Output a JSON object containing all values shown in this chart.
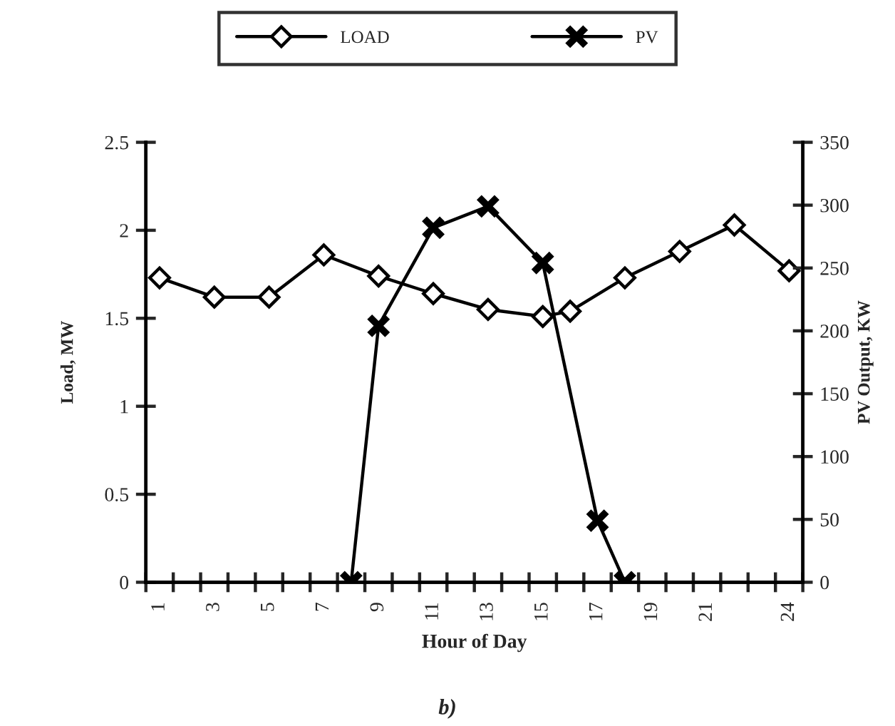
{
  "chart_data": {
    "type": "line",
    "categories": [
      "1",
      null,
      "3",
      null,
      "5",
      null,
      "7",
      null,
      "9",
      null,
      "11",
      null,
      "13",
      null,
      "15",
      null,
      "17",
      null,
      "19",
      null,
      "21",
      null,
      null,
      "24"
    ],
    "series": [
      {
        "name": "LOAD",
        "color": "#000000",
        "marker": "diamond",
        "values": [
          1.73,
          null,
          1.62,
          null,
          1.62,
          null,
          1.86,
          null,
          1.74,
          null,
          1.64,
          null,
          1.55,
          null,
          1.51,
          1.54,
          null,
          1.73,
          null,
          1.88,
          null,
          2.03,
          null,
          1.77
        ]
      },
      {
        "name": "PV",
        "color": "#000000",
        "marker": "cross",
        "axis": "y2",
        "values": [
          null,
          null,
          null,
          null,
          null,
          null,
          null,
          0,
          204,
          null,
          282,
          null,
          299,
          null,
          254,
          null,
          49,
          0,
          null,
          null,
          null,
          null,
          null,
          null
        ]
      }
    ],
    "xlabel": "Hour of Day",
    "ylabel": "Load, MW",
    "y2label": "PV Output, KW",
    "ylim": [
      0,
      2.5
    ],
    "yticks": [
      0,
      0.5,
      1,
      1.5,
      2,
      2.5
    ],
    "y2lim": [
      0,
      350
    ],
    "y2ticks": [
      0,
      50,
      100,
      150,
      200,
      250,
      300,
      350
    ],
    "legend": "top",
    "line_style": "solid",
    "annotations": [
      "b)"
    ]
  }
}
